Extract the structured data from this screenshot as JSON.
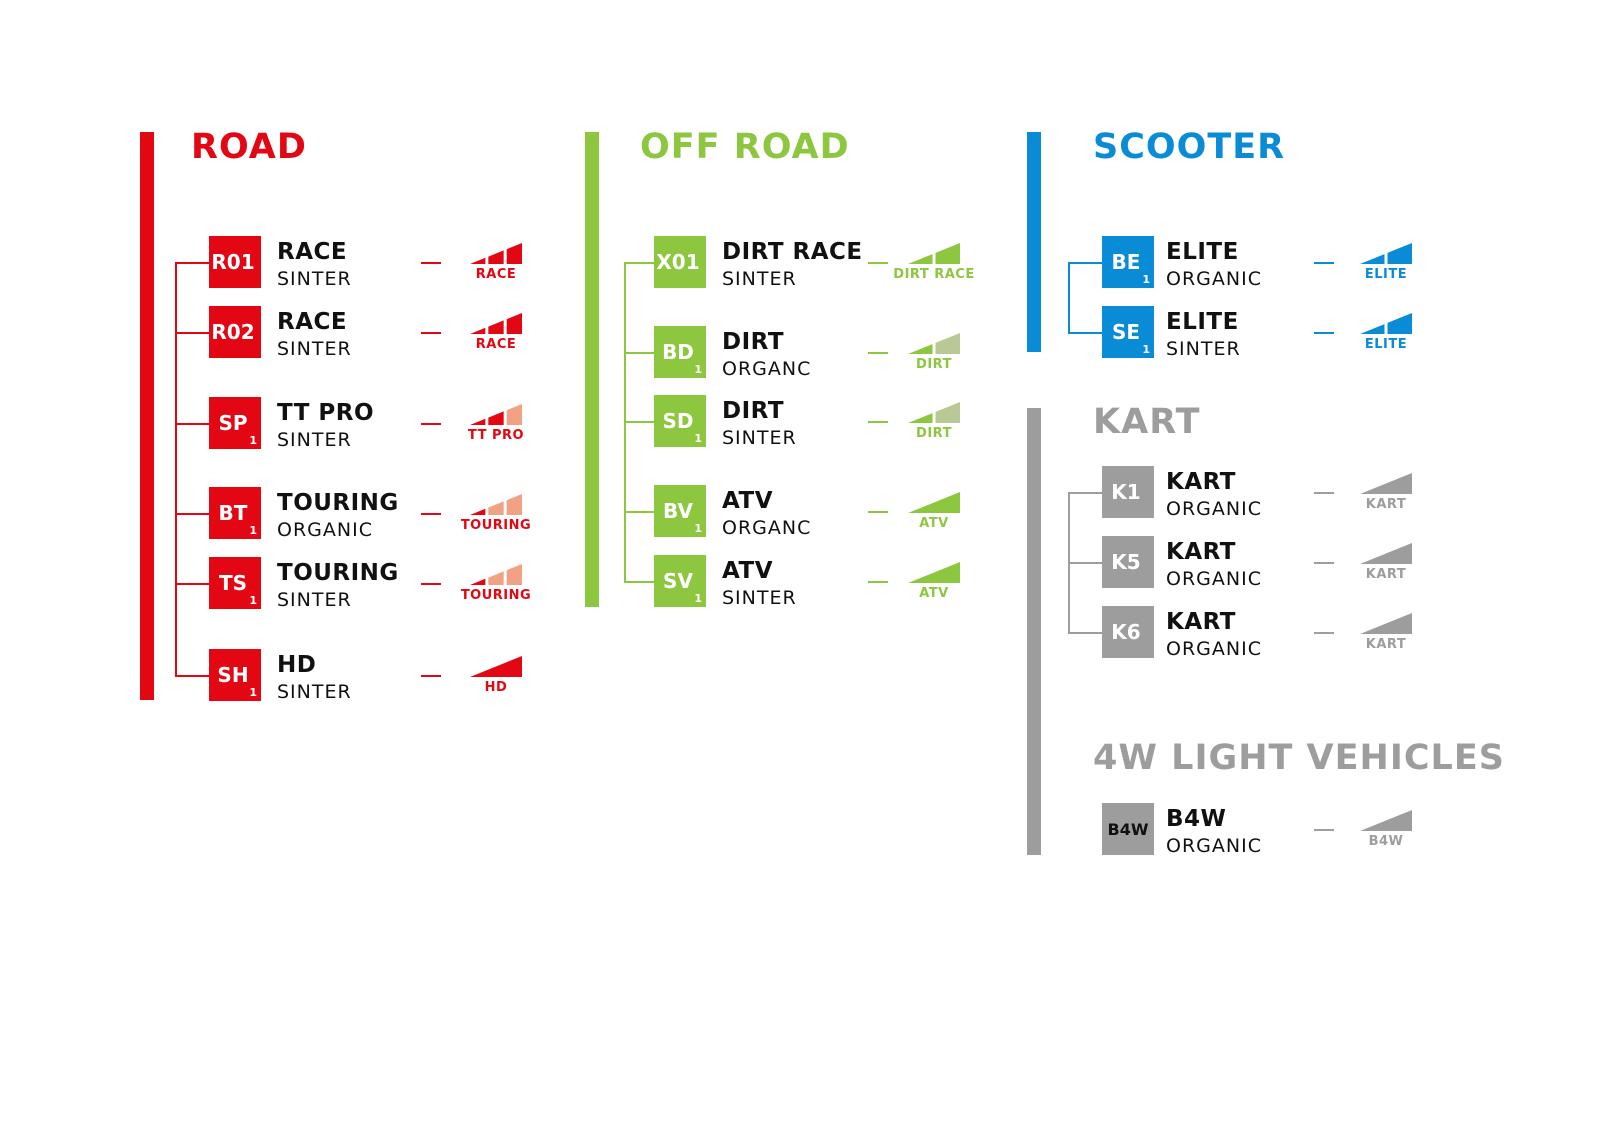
{
  "colors": {
    "road": "#e30613",
    "road_pale": "#f2a284",
    "offroad": "#8dc63f",
    "offroad_pale": "#b9c995",
    "scooter": "#0a8bd6",
    "scooter_pale": "#8cc6ea",
    "kart": "#9d9d9d",
    "kart_pale": "#d0d0d0"
  },
  "sections": [
    {
      "id": "road",
      "title": "ROAD",
      "color": "road",
      "items": [
        {
          "code": "R01",
          "sub": "",
          "name": "RACE",
          "material": "SINTER",
          "meter_label": "RACE",
          "segments": 3,
          "filled": 3
        },
        {
          "code": "R02",
          "sub": "",
          "name": "RACE",
          "material": "SINTER",
          "meter_label": "RACE",
          "segments": 3,
          "filled": 3
        },
        {
          "code": "SP",
          "sub": "1",
          "name": "TT PRO",
          "material": "SINTER",
          "meter_label": "TT PRO",
          "segments": 3,
          "filled": 2
        },
        {
          "code": "BT",
          "sub": "1",
          "name": "TOURING",
          "material": "ORGANIC",
          "meter_label": "TOURING",
          "segments": 3,
          "filled": 1
        },
        {
          "code": "TS",
          "sub": "1",
          "name": "TOURING",
          "material": "SINTER",
          "meter_label": "TOURING",
          "segments": 3,
          "filled": 1
        },
        {
          "code": "SH",
          "sub": "1",
          "name": "HD",
          "material": "SINTER",
          "meter_label": "HD",
          "segments": 1,
          "filled": 1
        }
      ]
    },
    {
      "id": "offroad",
      "title": "OFF ROAD",
      "color": "offroad",
      "items": [
        {
          "code": "X01",
          "sub": "",
          "name": "DIRT RACE",
          "material": "SINTER",
          "meter_label": "DIRT RACE",
          "segments": 2,
          "filled": 2
        },
        {
          "code": "BD",
          "sub": "1",
          "name": "DIRT",
          "material": "ORGANC",
          "meter_label": "DIRT",
          "segments": 2,
          "filled": 1
        },
        {
          "code": "SD",
          "sub": "1",
          "name": "DIRT",
          "material": "SINTER",
          "meter_label": "DIRT",
          "segments": 2,
          "filled": 1
        },
        {
          "code": "BV",
          "sub": "1",
          "name": "ATV",
          "material": "ORGANC",
          "meter_label": "ATV",
          "segments": 1,
          "filled": 1
        },
        {
          "code": "SV",
          "sub": "1",
          "name": "ATV",
          "material": "SINTER",
          "meter_label": "ATV",
          "segments": 1,
          "filled": 1
        }
      ]
    },
    {
      "id": "scooter",
      "title": "SCOOTER",
      "color": "scooter",
      "items": [
        {
          "code": "BE",
          "sub": "1",
          "name": "ELITE",
          "material": "ORGANIC",
          "meter_label": "ELITE",
          "segments": 2,
          "filled": 2
        },
        {
          "code": "SE",
          "sub": "1",
          "name": "ELITE",
          "material": "SINTER",
          "meter_label": "ELITE",
          "segments": 2,
          "filled": 2
        }
      ]
    },
    {
      "id": "kart",
      "title": "KART",
      "color": "kart",
      "items": [
        {
          "code": "K1",
          "sub": "",
          "name": "KART",
          "material": "ORGANIC",
          "meter_label": "KART",
          "segments": 1,
          "filled": 1
        },
        {
          "code": "K5",
          "sub": "",
          "name": "KART",
          "material": "ORGANIC",
          "meter_label": "KART",
          "segments": 1,
          "filled": 1
        },
        {
          "code": "K6",
          "sub": "",
          "name": "KART",
          "material": "ORGANIC",
          "meter_label": "KART",
          "segments": 1,
          "filled": 1
        }
      ]
    },
    {
      "id": "light4w",
      "title": "4W LIGHT VEHICLES",
      "color": "kart",
      "items": [
        {
          "code": "B4W",
          "sub": "",
          "name": "B4W",
          "material": "ORGANIC",
          "meter_label": "B4W",
          "segments": 1,
          "filled": 1
        }
      ]
    }
  ]
}
